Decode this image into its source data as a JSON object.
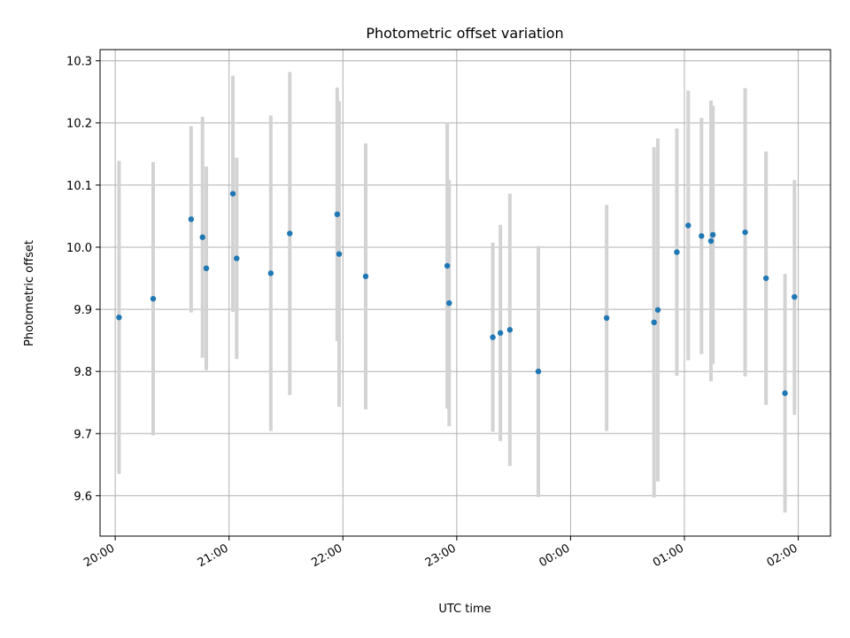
{
  "chart_data": {
    "type": "scatter",
    "title": "Photometric offset variation",
    "xlabel": "UTC time",
    "ylabel": "Photometric offset",
    "xlim": [
      "19:52",
      "02:17"
    ],
    "ylim": [
      9.535,
      10.318
    ],
    "x_ticks": [
      "20:00",
      "21:00",
      "22:00",
      "23:00",
      "00:00",
      "01:00",
      "02:00"
    ],
    "y_ticks": [
      "9.6",
      "9.7",
      "9.8",
      "9.9",
      "10.0",
      "10.1",
      "10.2",
      "10.3"
    ],
    "grid": true,
    "marker_color": "#1f77b4",
    "errorbar_color": "#d3d3d3",
    "series": [
      {
        "points": [
          {
            "x": "20:02",
            "y": 9.887,
            "ylow": 9.635,
            "yhigh": 10.139
          },
          {
            "x": "20:20",
            "y": 9.917,
            "ylow": 9.697,
            "yhigh": 10.137
          },
          {
            "x": "20:40",
            "y": 10.045,
            "ylow": 9.895,
            "yhigh": 10.195
          },
          {
            "x": "20:46",
            "y": 10.016,
            "ylow": 9.822,
            "yhigh": 10.21
          },
          {
            "x": "20:48",
            "y": 9.966,
            "ylow": 9.802,
            "yhigh": 10.13
          },
          {
            "x": "21:02",
            "y": 10.086,
            "ylow": 9.896,
            "yhigh": 10.276
          },
          {
            "x": "21:04",
            "y": 9.982,
            "ylow": 9.82,
            "yhigh": 10.144
          },
          {
            "x": "21:22",
            "y": 9.958,
            "ylow": 9.704,
            "yhigh": 10.212
          },
          {
            "x": "21:32",
            "y": 10.022,
            "ylow": 9.762,
            "yhigh": 10.282
          },
          {
            "x": "21:57",
            "y": 10.053,
            "ylow": 9.849,
            "yhigh": 10.257
          },
          {
            "x": "21:58",
            "y": 9.989,
            "ylow": 9.743,
            "yhigh": 10.235
          },
          {
            "x": "22:12",
            "y": 9.953,
            "ylow": 9.739,
            "yhigh": 10.167
          },
          {
            "x": "22:55",
            "y": 9.97,
            "ylow": 9.74,
            "yhigh": 10.2
          },
          {
            "x": "22:56",
            "y": 9.91,
            "ylow": 9.712,
            "yhigh": 10.108
          },
          {
            "x": "23:19",
            "y": 9.855,
            "ylow": 9.703,
            "yhigh": 10.007
          },
          {
            "x": "23:23",
            "y": 9.862,
            "ylow": 9.688,
            "yhigh": 10.036
          },
          {
            "x": "23:28",
            "y": 9.867,
            "ylow": 9.648,
            "yhigh": 10.086
          },
          {
            "x": "23:43",
            "y": 9.8,
            "ylow": 9.598,
            "yhigh": 10.002
          },
          {
            "x": "00:19",
            "y": 9.886,
            "ylow": 9.704,
            "yhigh": 10.068
          },
          {
            "x": "00:44",
            "y": 9.879,
            "ylow": 9.597,
            "yhigh": 10.161
          },
          {
            "x": "00:46",
            "y": 9.899,
            "ylow": 9.623,
            "yhigh": 10.175
          },
          {
            "x": "00:56",
            "y": 9.992,
            "ylow": 9.793,
            "yhigh": 10.191
          },
          {
            "x": "01:02",
            "y": 10.035,
            "ylow": 9.818,
            "yhigh": 10.252
          },
          {
            "x": "01:09",
            "y": 10.018,
            "ylow": 9.828,
            "yhigh": 10.208
          },
          {
            "x": "01:14",
            "y": 10.01,
            "ylow": 9.784,
            "yhigh": 10.236
          },
          {
            "x": "01:15",
            "y": 10.02,
            "ylow": 9.812,
            "yhigh": 10.228
          },
          {
            "x": "01:32",
            "y": 10.024,
            "ylow": 9.792,
            "yhigh": 10.256
          },
          {
            "x": "01:43",
            "y": 9.95,
            "ylow": 9.746,
            "yhigh": 10.154
          },
          {
            "x": "01:53",
            "y": 9.765,
            "ylow": 9.573,
            "yhigh": 9.957
          },
          {
            "x": "01:58",
            "y": 9.92,
            "ylow": 9.73,
            "yhigh": 10.108
          }
        ]
      }
    ]
  }
}
